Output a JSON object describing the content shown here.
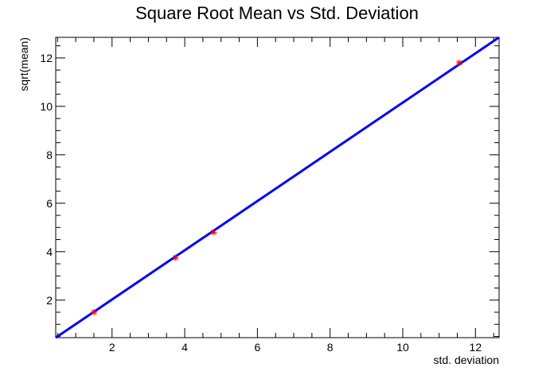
{
  "chart_data": {
    "type": "scatter",
    "title": "Square Root Mean vs Std. Deviation",
    "xlabel": "std. deviation",
    "ylabel": "sqrt(mean)",
    "xlim": [
      0.45,
      12.65
    ],
    "ylim": [
      0.45,
      12.85
    ],
    "x_ticks": [
      "2",
      "4",
      "6",
      "8",
      "10",
      "12"
    ],
    "y_ticks": [
      "2",
      "4",
      "6",
      "8",
      "10",
      "12"
    ],
    "grid": false,
    "series": [
      {
        "kind": "points",
        "marker": "star",
        "color": "#ff0000",
        "points": [
          {
            "x": 1.5,
            "y": 1.5
          },
          {
            "x": 3.75,
            "y": 3.75
          },
          {
            "x": 4.8,
            "y": 4.8
          },
          {
            "x": 11.55,
            "y": 11.8
          }
        ]
      },
      {
        "kind": "fit-line",
        "color": "#0000ff",
        "points": [
          {
            "x": 0.45,
            "y": 0.45
          },
          {
            "x": 12.65,
            "y": 12.85
          }
        ]
      }
    ]
  }
}
